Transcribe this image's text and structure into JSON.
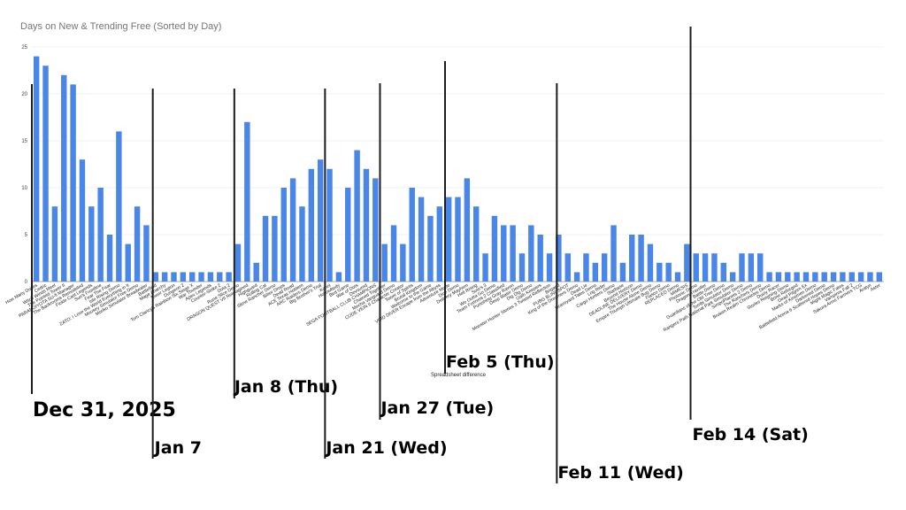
{
  "chart_data": {
    "type": "bar",
    "title": "Days on New & Trending Free (Sorted by Day)",
    "xlabel": "",
    "ylabel": "",
    "ylim": [
      0,
      25
    ],
    "yticks": [
      0,
      5,
      10,
      15,
      20,
      25
    ],
    "grid": true,
    "legend": "none",
    "bar_color": "#4a86e8",
    "categories": [
      "How Many Dudes",
      "Cedric",
      "Witch Winds Meet",
      "The Pointed Tower II",
      "PARANOIYOTA Sci-fi Manager",
      "The Backrooms Remodeled",
      "Fickle Cast Legends",
      "Sun's Frontline",
      "Fear The Fear",
      "Isle Rising Demo",
      "ZATO: I Love the World Everything in It",
      "Mousey Simulator Free Demo",
      "Moriko Simulator Breadwater",
      "Battlefield",
      "Mage Anarchy",
      "Tower Legion",
      "Dungeon 2",
      "Tom Clancy's Rainbow Six Siege X",
      "War Thunder",
      "Apex Legends",
      "Counter-Strike 2",
      "Dota 2",
      "Rune Slice Demo",
      "DRAGON QUEST VII Reimagined",
      "Highguard",
      "Rolling Cat",
      "Slime Rancher Demo",
      "Bitter Drops",
      "Dead Road",
      "ACE Texas Holdem",
      "ARC Raiders Demo",
      "Big Brother's Trial",
      "Kanoi",
      "Hollowbody",
      "Bird Game",
      "War of Dots",
      "Devoured",
      "SEGA FOOTBALL CLUB CHAMPIONS",
      "Chained Together",
      "Mecha Vanguard Demo",
      "CODE VEIN II Character Creator",
      "Tower of Spirits",
      "Brutal Kingdom",
      "Welcome to the Game",
      "VOID DIVER Escape from the Abyss",
      "Adventure Mode",
      "Dice Demo",
      "Delivery Mayhem",
      "Hell Rising",
      "Solo's 3",
      "We Outta Go Demo",
      "Team Fortress 2 Classified",
      "Punishing Gray Raven",
      "Deep Water Demo",
      "Dig Dig Demo",
      "Oath Keepers",
      "Monster Hunter Stories 3 Twisted Reflection",
      "Brigand",
      "PUBG BLINDSPOT",
      "King of the Dreamers Demo",
      "Dead Lie",
      "Graveyard Tales Demo",
      "Log Rider",
      "Cargo Hunters Demo",
      "Starbase",
      "Beyond Horizon",
      "DEADLINE DELIVERY Demo",
      "The House Alone Demo",
      "Empire Triumph Ultimate Bug Demo",
      "Fiasco Demo",
      "REPLACED Demo",
      "MIMESIS",
      "Photonic Demo",
      "Dragon Traveller",
      "Battle Demo",
      "Guardians of the Old Tree Demo",
      "Tombi Simulator Demo",
      "Rangers Path National Park Simulator Demo",
      "SimpoPlanets 2 Demo",
      "The Ranchers Demo",
      "Broken Realm Chronicles Demo",
      "Dusty Racer",
      "Stories Reigning Demo",
      "Brine Reforged",
      "Dead Pilgrim Ex",
      "Marks of Kinsmen Demo",
      "Darkened Demo",
      "Battlefield Arena 6 Scattered Hopes Demo",
      "Might Magic Fates",
      "Vampires Fall 2",
      "Sakura Arms Farmers TCG",
      "Aralyn",
      "Aster"
    ],
    "values": [
      24,
      23,
      8,
      22,
      21,
      13,
      8,
      10,
      5,
      16,
      4,
      8,
      6,
      1,
      1,
      1,
      1,
      1,
      1,
      1,
      1,
      1,
      4,
      17,
      2,
      7,
      7,
      10,
      11,
      8,
      12,
      13,
      12,
      1,
      10,
      14,
      12,
      11,
      4,
      6,
      4,
      10,
      9,
      7,
      8,
      9,
      9,
      11,
      8,
      3,
      7,
      6,
      6,
      3,
      6,
      5,
      3,
      5,
      3,
      1,
      3,
      2,
      3,
      6,
      2,
      5,
      5,
      4,
      2,
      2,
      1,
      4,
      3,
      3,
      3,
      2,
      1,
      3,
      3,
      3,
      1,
      1,
      1,
      1,
      1,
      1,
      1,
      1,
      1,
      1,
      1,
      1,
      1
    ],
    "note": "Spreadsheet difference",
    "markers": [
      {
        "label": "Dec 31, 2025",
        "index": -0.5
      },
      {
        "label": "Jan 7",
        "index": 12.7
      },
      {
        "label": "Jan 8 (Thu)",
        "index": 21.6
      },
      {
        "label": "Jan 21 (Wed)",
        "index": 31.5
      },
      {
        "label": "Jan 27 (Tue)",
        "index": 37.5
      },
      {
        "label": "Feb 5 (Thu)",
        "index": 44.6
      },
      {
        "label": "Feb 11 (Wed)",
        "index": 56.8
      },
      {
        "label": "Feb 14 (Sat)",
        "index": 71.4
      }
    ]
  }
}
